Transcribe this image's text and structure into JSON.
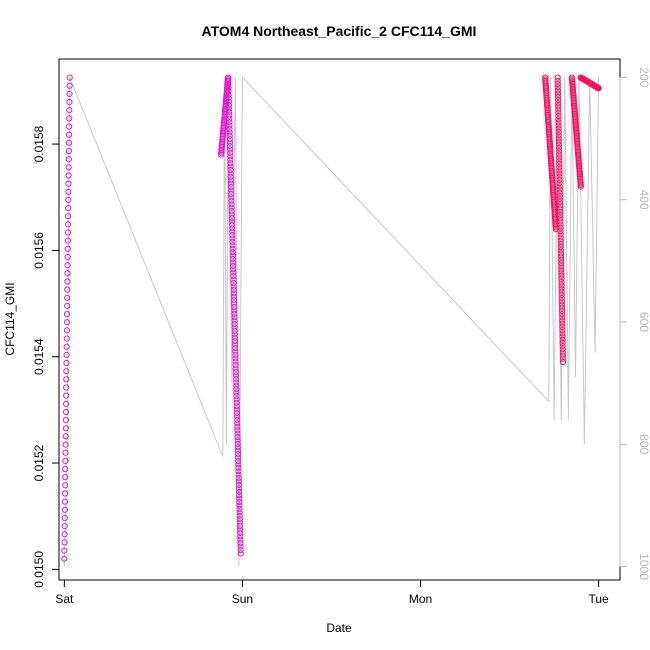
{
  "chart_data": {
    "type": "scatter",
    "title": "ATOM4 Northeast_Pacific_2 CFC114_GMI",
    "xlabel": "Date",
    "ylabel": "CFC114_GMI",
    "x_ticks": [
      "Sat",
      "Sun",
      "Mon",
      "Tue"
    ],
    "x_tick_values": [
      0,
      1,
      2,
      3
    ],
    "x_range": [
      -0.03,
      3.12
    ],
    "y_range": [
      0.01498,
      0.01596
    ],
    "y_ticks": [
      "0.0150",
      "0.0152",
      "0.0154",
      "0.0156",
      "0.0158"
    ],
    "y_tick_values": [
      0.015,
      0.0152,
      0.0154,
      0.0156,
      0.0158
    ],
    "y2_range": [
      1022,
      170
    ],
    "y2_ticks": [
      "200",
      "400",
      "600",
      "800",
      "1000"
    ],
    "y2_tick_values": [
      200,
      400,
      600,
      800,
      1000
    ],
    "grid": false,
    "legend": "none",
    "colors": {
      "points_early": "#e21ad4",
      "points_late": "#ff1060",
      "pressure_line": "#c8c8c8",
      "right_axis": "#b8b8b8"
    },
    "series": [
      {
        "kind": "points",
        "profiles": [
          {
            "x_start": 0.0,
            "x_end": 0.03,
            "y_start": 0.01502,
            "y_end": 0.015925,
            "n": 60
          },
          {
            "x_start": 0.88,
            "x_end": 0.92,
            "y_start": 0.01578,
            "y_end": 0.015925,
            "n": 50
          },
          {
            "x_start": 0.92,
            "x_end": 0.99,
            "y_start": 0.015925,
            "y_end": 0.01503,
            "n": 140
          },
          {
            "x_start": 2.7,
            "x_end": 2.76,
            "y_start": 0.015925,
            "y_end": 0.01564,
            "n": 90
          },
          {
            "x_start": 2.77,
            "x_end": 2.8,
            "y_start": 0.015925,
            "y_end": 0.01539,
            "n": 90
          },
          {
            "x_start": 2.85,
            "x_end": 2.9,
            "y_start": 0.015925,
            "y_end": 0.01572,
            "n": 70
          },
          {
            "x_start": 2.9,
            "x_end": 3.0,
            "y_start": 0.015925,
            "y_end": 0.015905,
            "n": 90
          }
        ]
      },
      {
        "kind": "line",
        "name": "pressure",
        "x": [
          0.0,
          0.015,
          0.03,
          0.89,
          0.9,
          0.91,
          0.92,
          0.94,
          0.96,
          0.98,
          1.0,
          2.72,
          2.73,
          2.75,
          2.77,
          2.79,
          2.81,
          2.83,
          2.85,
          2.87,
          2.89,
          2.92,
          2.95,
          2.98,
          3.0
        ],
        "y": [
          1000,
          820,
          200,
          820,
          200,
          800,
          210,
          700,
          200,
          1000,
          200,
          730,
          200,
          760,
          210,
          760,
          200,
          760,
          200,
          690,
          200,
          800,
          200,
          650,
          200
        ]
      }
    ]
  }
}
